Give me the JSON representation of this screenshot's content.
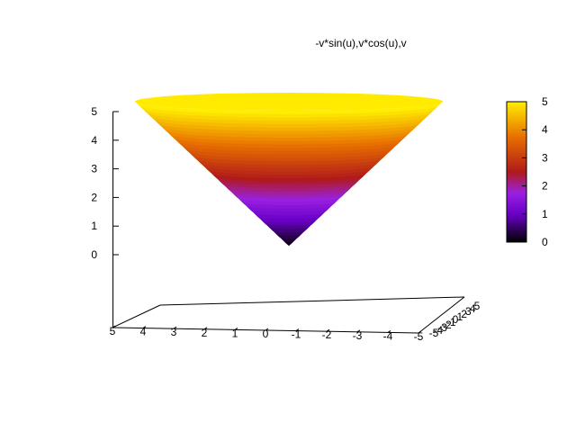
{
  "chart_data": {
    "type": "surface3d",
    "title": "-v*sin(u),v*cos(u),v",
    "function": {
      "x": "-v*sin(u)",
      "y": "v*cos(u)",
      "z": "v"
    },
    "x_axis": {
      "range": [
        5,
        -5
      ],
      "ticks": [
        "5",
        "4",
        "3",
        "2",
        "1",
        "0",
        "-1",
        "-2",
        "-3",
        "-4",
        "-5"
      ]
    },
    "y_axis": {
      "range": [
        -5,
        5
      ],
      "ticks": [
        "-5",
        "-4",
        "-3",
        "-2",
        "-1",
        "0",
        "1",
        "2",
        "3",
        "4",
        "5"
      ]
    },
    "z_axis": {
      "range": [
        0,
        5
      ],
      "ticks": [
        "0",
        "1",
        "2",
        "3",
        "4",
        "5"
      ]
    },
    "colorbox": {
      "range": [
        0,
        5
      ],
      "ticks": [
        "0",
        "1",
        "2",
        "3",
        "4",
        "5"
      ],
      "palette": "black-blue-violet-red-orange-yellow"
    },
    "grid": false,
    "legend": "none"
  }
}
